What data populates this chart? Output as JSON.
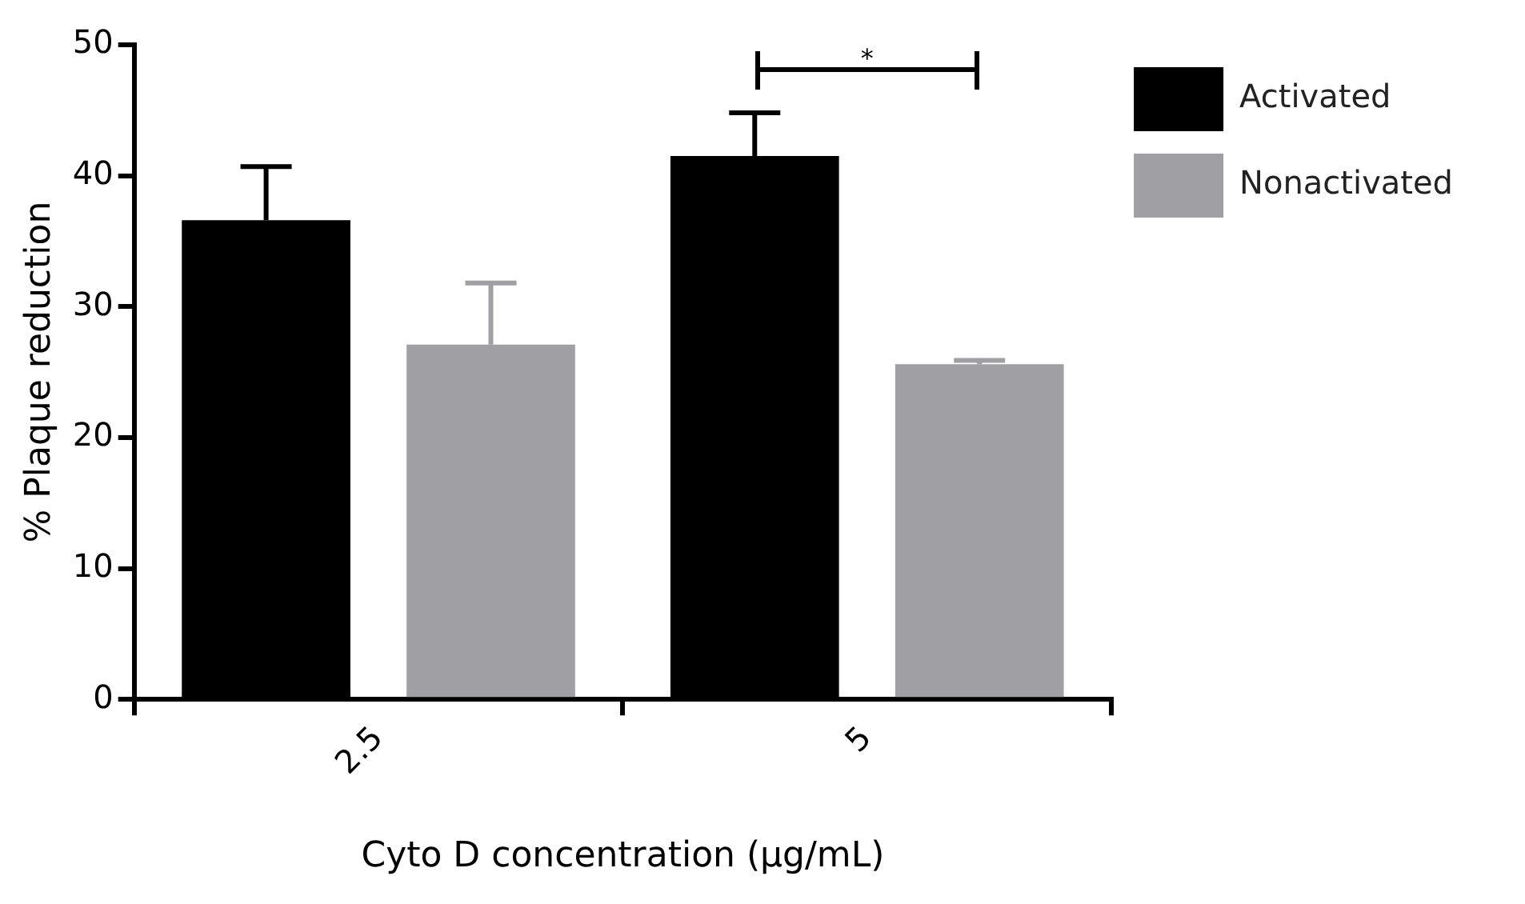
{
  "chart_data": {
    "type": "bar",
    "xlabel": "Cyto D concentration (μg/mL)",
    "ylabel": "% Plaque reduction",
    "categories": [
      "2.5",
      "5"
    ],
    "series": [
      {
        "name": "Activated",
        "color": "#000000",
        "values": [
          36.6,
          41.5
        ],
        "errors": [
          [
            36.6,
            40.7
          ],
          [
            41.5,
            44.8
          ]
        ]
      },
      {
        "name": "Nonactivated",
        "color": "#a0a0a4",
        "values": [
          27.1,
          25.6
        ],
        "errors": [
          [
            27.1,
            31.8
          ],
          [
            25.6,
            25.9
          ]
        ]
      }
    ],
    "ylim": [
      0,
      50
    ],
    "yticks": [
      0,
      10,
      20,
      30,
      40,
      50
    ],
    "grid": false,
    "legend": "right",
    "annotations": [
      "*"
    ]
  }
}
